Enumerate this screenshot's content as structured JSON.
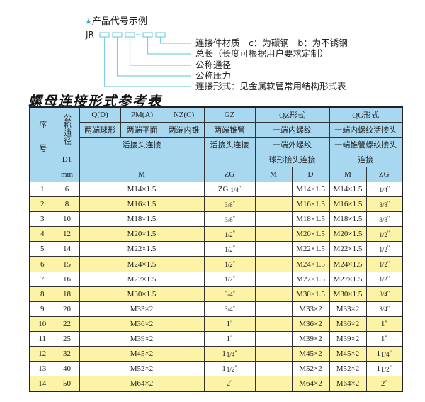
{
  "example": {
    "title": "产品代号示例",
    "star_icon": "star-icon",
    "prefix": "JR",
    "dash": "-",
    "labels": [
      "连接件材质　c：为碳钢　b：为不锈钢",
      "总长（长度可根据用户要求定制）",
      "公称通径",
      "公称压力",
      "连接形式：见金属软管常用结构形式表"
    ],
    "line_color": "#7fcde0"
  },
  "table_title": "螺母连接形式参考表",
  "colors": {
    "header_bg": "#a8d8f0",
    "alt_row_bg": "#fdf3a6"
  },
  "header": {
    "seq": "序号",
    "dn": "公称通径",
    "row1": [
      "Q(D)",
      "PM(A)",
      "NZ(C)",
      "GZ",
      "QZ形式",
      "QG形式"
    ],
    "row2": [
      "两端球形",
      "两端平面",
      "两端内锥",
      "两端锥管",
      "一端内螺纹",
      "一端内螺纹活接头"
    ],
    "row3": [
      "活接头连接",
      "活接头连接",
      "一端外螺纹",
      "一端锥管螺纹接头"
    ],
    "row4": [
      "D1",
      "",
      "",
      "球形接头连接",
      "连接"
    ],
    "row5": [
      "mm",
      "M",
      "ZG",
      "M",
      "D",
      "M",
      "ZG"
    ]
  },
  "rows": [
    {
      "no": "1",
      "d1": "6",
      "m": "M14×1.5",
      "zg": {
        "prefix": "ZG",
        "whole": "",
        "frac": "1/4",
        "mark": "\""
      },
      "qz_m": "",
      "qz_d": "M14×1.5",
      "qg_m": "M14×1.5",
      "qg_zg": {
        "whole": "",
        "frac": "1/4",
        "mark": "\""
      }
    },
    {
      "no": "2",
      "d1": "8",
      "m": "M16×1.5",
      "zg": {
        "prefix": "",
        "whole": "",
        "frac": "3/8",
        "mark": "\""
      },
      "qz_m": "",
      "qz_d": "M16×1.5",
      "qg_m": "M16×1.5",
      "qg_zg": {
        "whole": "",
        "frac": "3/8",
        "mark": "\""
      }
    },
    {
      "no": "3",
      "d1": "10",
      "m": "M18×1.5",
      "zg": {
        "prefix": "",
        "whole": "",
        "frac": "3/8",
        "mark": "\""
      },
      "qz_m": "",
      "qz_d": "M18×1.5",
      "qg_m": "M18×1.5",
      "qg_zg": {
        "whole": "",
        "frac": "3/8",
        "mark": "\""
      }
    },
    {
      "no": "4",
      "d1": "12",
      "m": "M20×1.5",
      "zg": {
        "prefix": "",
        "whole": "",
        "frac": "1/2",
        "mark": "\""
      },
      "qz_m": "",
      "qz_d": "M20×1.5",
      "qg_m": "M20×1.5",
      "qg_zg": {
        "whole": "",
        "frac": "1/2",
        "mark": "\""
      }
    },
    {
      "no": "5",
      "d1": "14",
      "m": "M22×1.5",
      "zg": {
        "prefix": "",
        "whole": "",
        "frac": "1/2",
        "mark": "\""
      },
      "qz_m": "",
      "qz_d": "M22×1.5",
      "qg_m": "M22×1.5",
      "qg_zg": {
        "whole": "",
        "frac": "1/2",
        "mark": "\""
      }
    },
    {
      "no": "6",
      "d1": "15",
      "m": "M24×1.5",
      "zg": {
        "prefix": "",
        "whole": "",
        "frac": "1/2",
        "mark": "\""
      },
      "qz_m": "",
      "qz_d": "M24×1.5",
      "qg_m": "M24×1.5",
      "qg_zg": {
        "whole": "",
        "frac": "1/2",
        "mark": "\""
      }
    },
    {
      "no": "7",
      "d1": "16",
      "m": "M27×1.5",
      "zg": {
        "prefix": "",
        "whole": "",
        "frac": "1/2",
        "mark": "\""
      },
      "qz_m": "",
      "qz_d": "M27×1.5",
      "qg_m": "M27×1.5",
      "qg_zg": {
        "whole": "",
        "frac": "1/2",
        "mark": "\""
      }
    },
    {
      "no": "8",
      "d1": "18",
      "m": "M30×1.5",
      "zg": {
        "prefix": "",
        "whole": "",
        "frac": "3/4",
        "mark": "\""
      },
      "qz_m": "",
      "qz_d": "M30×1.5",
      "qg_m": "M30×1.5",
      "qg_zg": {
        "whole": "",
        "frac": "3/4",
        "mark": "\""
      }
    },
    {
      "no": "9",
      "d1": "20",
      "m": "M33×2",
      "zg": {
        "prefix": "",
        "whole": "",
        "frac": "3/4",
        "mark": "\""
      },
      "qz_m": "",
      "qz_d": "M33×2",
      "qg_m": "M33×2",
      "qg_zg": {
        "whole": "",
        "frac": "3/4",
        "mark": "\""
      }
    },
    {
      "no": "10",
      "d1": "22",
      "m": "M36×2",
      "zg": {
        "prefix": "",
        "whole": "1",
        "frac": "",
        "mark": "\""
      },
      "qz_m": "",
      "qz_d": "M36×2",
      "qg_m": "M36×2",
      "qg_zg": {
        "whole": "1",
        "frac": "",
        "mark": "\""
      }
    },
    {
      "no": "11",
      "d1": "25",
      "m": "M39×2",
      "zg": {
        "prefix": "",
        "whole": "1",
        "frac": "",
        "mark": "\""
      },
      "qz_m": "",
      "qz_d": "M39×2",
      "qg_m": "M39×2",
      "qg_zg": {
        "whole": "1",
        "frac": "",
        "mark": "\""
      }
    },
    {
      "no": "12",
      "d1": "32",
      "m": "M45×2",
      "zg": {
        "prefix": "",
        "whole": "1",
        "frac": "1/4",
        "mark": "\""
      },
      "qz_m": "",
      "qz_d": "M45×2",
      "qg_m": "M45×2",
      "qg_zg": {
        "whole": "1",
        "frac": "1/4",
        "mark": "\""
      }
    },
    {
      "no": "13",
      "d1": "40",
      "m": "M52×2",
      "zg": {
        "prefix": "",
        "whole": "1",
        "frac": "1/2",
        "mark": "\""
      },
      "qz_m": "",
      "qz_d": "M52×2",
      "qg_m": "M52×2",
      "qg_zg": {
        "whole": "1",
        "frac": "1/2",
        "mark": "\""
      }
    },
    {
      "no": "14",
      "d1": "50",
      "m": "M64×2",
      "zg": {
        "prefix": "",
        "whole": "2",
        "frac": "",
        "mark": "\""
      },
      "qz_m": "",
      "qz_d": "M64×2",
      "qg_m": "M64×2",
      "qg_zg": {
        "whole": "2",
        "frac": "",
        "mark": "\""
      }
    }
  ]
}
